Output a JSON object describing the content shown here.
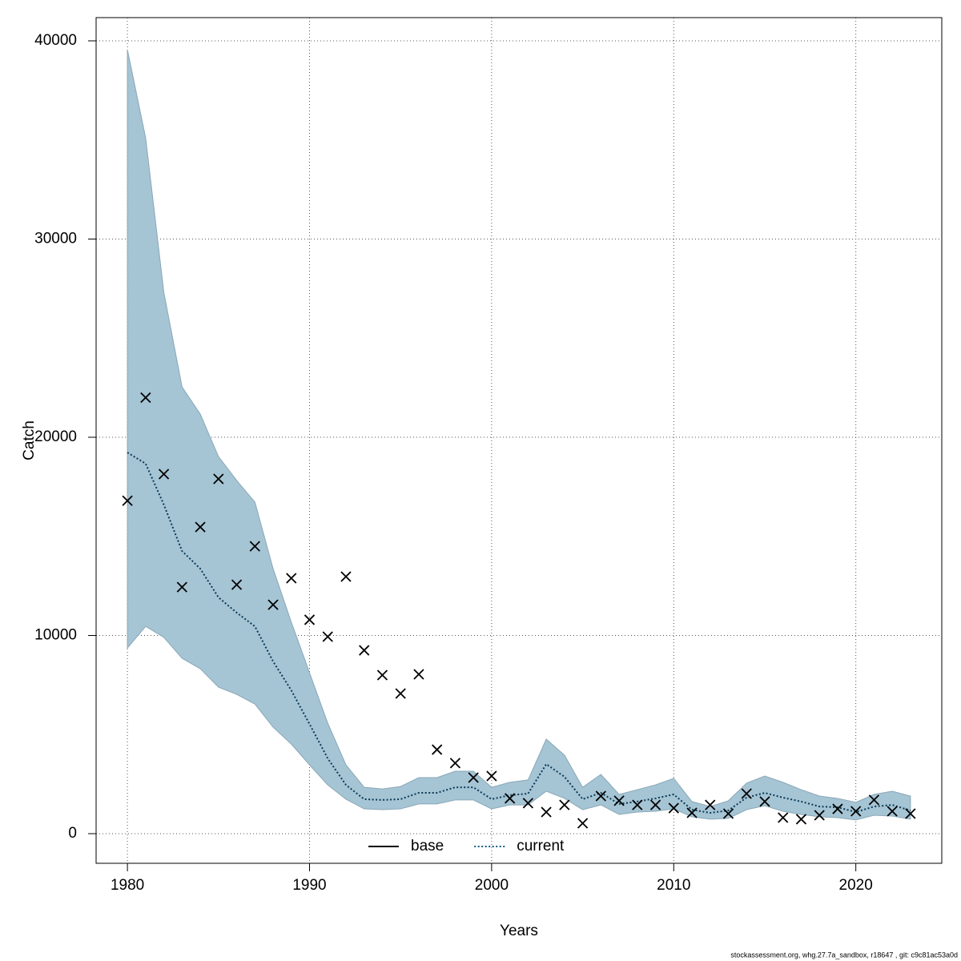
{
  "chart_data": {
    "type": "line",
    "x_label": "Years",
    "y_label": "Catch",
    "footnote": "stockassessment.org, whg.27.7a_sandbox, r18647 , git: c9c81ac53a0d",
    "x": [
      1980,
      1981,
      1982,
      1983,
      1984,
      1985,
      1986,
      1987,
      1988,
      1989,
      1990,
      1991,
      1992,
      1993,
      1994,
      1995,
      1996,
      1997,
      1998,
      1999,
      2000,
      2001,
      2002,
      2003,
      2004,
      2005,
      2006,
      2007,
      2008,
      2009,
      2010,
      2011,
      2012,
      2013,
      2014,
      2015,
      2016,
      2017,
      2018,
      2019,
      2020,
      2021,
      2022,
      2023
    ],
    "estimate": {
      "color": "#0a3a55",
      "style": "dotted",
      "values": [
        19230,
        18670,
        16600,
        14260,
        13370,
        11920,
        11150,
        10460,
        8690,
        7230,
        5530,
        3800,
        2460,
        1740,
        1700,
        1740,
        2060,
        2060,
        2340,
        2340,
        1740,
        1940,
        2020,
        3510,
        2870,
        1740,
        2060,
        1500,
        1620,
        1780,
        1980,
        1210,
        1050,
        1170,
        1820,
        2060,
        1820,
        1620,
        1370,
        1330,
        1090,
        1370,
        1450,
        1170
      ]
    },
    "band": {
      "color": "#a5c4d4",
      "edge": "#8aa8b8",
      "upper": [
        39550,
        35110,
        27310,
        22540,
        21170,
        19030,
        17820,
        16730,
        13370,
        10670,
        8120,
        5580,
        3470,
        2340,
        2260,
        2380,
        2830,
        2830,
        3150,
        3150,
        2340,
        2590,
        2710,
        4770,
        3960,
        2340,
        2990,
        1980,
        2220,
        2460,
        2790,
        1620,
        1370,
        1660,
        2550,
        2910,
        2590,
        2220,
        1900,
        1780,
        1580,
        1980,
        2140,
        1900
      ],
      "lower": [
        9370,
        10460,
        9900,
        8850,
        8320,
        7390,
        7030,
        6540,
        5370,
        4520,
        3470,
        2460,
        1740,
        1250,
        1210,
        1250,
        1500,
        1500,
        1700,
        1700,
        1250,
        1450,
        1450,
        2140,
        1780,
        1210,
        1450,
        970,
        1090,
        1130,
        1250,
        850,
        730,
        770,
        1210,
        1410,
        1130,
        970,
        850,
        810,
        690,
        930,
        890,
        730
      ]
    },
    "observed": {
      "color": "#000000",
      "values": [
        16800,
        22000,
        18140,
        12440,
        15470,
        17900,
        12560,
        14500,
        11550,
        12890,
        10790,
        9940,
        12970,
        9250,
        8000,
        7070,
        8040,
        4240,
        3560,
        2830,
        2910,
        1780,
        1540,
        1090,
        1450,
        525,
        1900,
        1660,
        1450,
        1450,
        1290,
        1050,
        1450,
        1010,
        2020,
        1620,
        810,
        730,
        930,
        1250,
        1130,
        1700,
        1130,
        1010
      ]
    },
    "legend": {
      "position": "bottom",
      "entries": [
        {
          "name": "base",
          "color": "#000000",
          "style": "solid"
        },
        {
          "name": "current",
          "color": "#0a5a85",
          "style": "dotted"
        }
      ]
    },
    "xlim": [
      1978.28,
      2024.72
    ],
    "ylim": [
      -1495,
      41172
    ],
    "xticks": [
      1980,
      1990,
      2000,
      2010,
      2020
    ],
    "yticks": [
      0,
      10000,
      20000,
      30000,
      40000
    ],
    "grid": true
  }
}
